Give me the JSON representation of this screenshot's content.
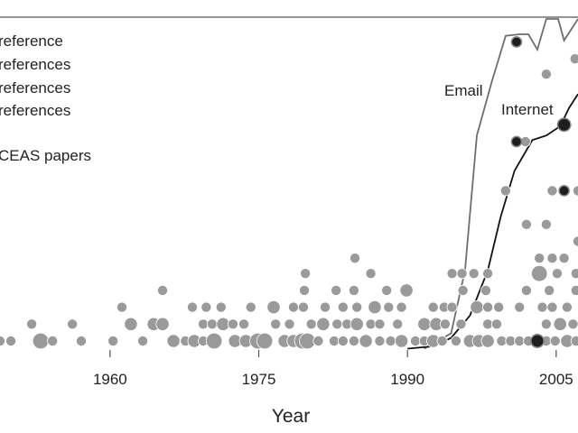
{
  "chart_data": {
    "type": "scatter",
    "x_label": "Year",
    "xlim": [
      1948.9,
      2007.2
    ],
    "xticks": [
      1960,
      1975,
      1990,
      2005
    ],
    "ylim": [
      0,
      22
    ],
    "size_legend": [
      "reference",
      "references",
      "references",
      "references"
    ],
    "series": [
      {
        "color": "#9a9a9a",
        "x": [
          1948.9,
          1950.0,
          1953.0,
          1954.2,
          1957.1,
          1960.3,
          1963.3,
          1966.4,
          1967.6,
          1968.5,
          1969.4,
          1970.5,
          1972.6,
          1973.7,
          1974.9,
          1975.6,
          1977.6,
          1978.5,
          1979.4,
          1979.9,
          1981.0,
          1982.6,
          1983.5,
          1984.6,
          1985.8,
          1987.2,
          1988.3,
          1989.4,
          1990.8,
          1991.7,
          1992.6,
          1993.5,
          1994.9,
          1996.3,
          1997.2,
          1998.1,
          1999.5,
          2000.4,
          2001.3,
          2002.2,
          2004.0,
          2004.9,
          2006.1,
          2007.0,
          1952.1,
          1956.2,
          1962.1,
          1964.4,
          1965.3,
          1969.4,
          1970.3,
          1971.4,
          1972.4,
          1973.5,
          1976.7,
          1978.1,
          1980.3,
          1981.5,
          1982.9,
          1983.9,
          1984.9,
          1986.3,
          1987.2,
          1989.0,
          1991.7,
          1992.9,
          1993.8,
          1995.4,
          1998.1,
          1999.0,
          2004.0,
          2005.4,
          2006.7,
          1961.2,
          1968.3,
          1969.7,
          1971.2,
          1974.2,
          1976.5,
          1978.5,
          1979.5,
          1981.7,
          1983.5,
          1984.9,
          1986.7,
          1988.1,
          1989.4,
          1992.6,
          1993.7,
          1994.5,
          1997.0,
          1998.1,
          1999.2,
          2001.3,
          2003.6,
          2004.6,
          2006.1,
          1965.3,
          1979.6,
          1982.8,
          1984.6,
          1987.9,
          1989.9,
          1995.6,
          1997.9,
          2002.0,
          2004.3,
          2007.0,
          1979.7,
          1986.3,
          1994.5,
          1995.5,
          1996.7,
          1998.1,
          2003.3,
          2005.1,
          2007.0,
          1984.7,
          2003.3,
          2004.6,
          2005.8,
          2007.2,
          2002.0,
          2004.0,
          1999.9,
          2004.6,
          2007.2,
          2001.9,
          2004.0,
          2006.9
        ],
        "y": [
          1,
          1,
          1,
          1,
          1,
          1,
          1,
          1,
          1,
          1,
          1,
          1,
          1,
          1,
          1,
          1,
          1,
          1,
          1,
          1,
          1,
          1,
          1,
          1,
          1,
          1,
          1,
          1,
          1,
          1,
          1,
          1,
          1,
          1,
          1,
          1,
          1,
          1,
          1,
          1,
          1,
          1,
          1,
          1,
          2.1,
          2.1,
          2.1,
          2.1,
          2.1,
          2.1,
          2.1,
          2.1,
          2.1,
          2.1,
          2.1,
          2.1,
          2.1,
          2.1,
          2.1,
          2.1,
          2.1,
          2.1,
          2.1,
          2.1,
          2.1,
          2.1,
          2.1,
          2.1,
          2.1,
          2.1,
          2.1,
          2.1,
          2.1,
          3.2,
          3.2,
          3.2,
          3.2,
          3.2,
          3.2,
          3.2,
          3.2,
          3.2,
          3.2,
          3.2,
          3.2,
          3.2,
          3.2,
          3.2,
          3.2,
          3.2,
          3.2,
          3.2,
          3.2,
          3.2,
          3.2,
          3.2,
          3.2,
          4.3,
          4.3,
          4.3,
          4.3,
          4.3,
          4.3,
          4.3,
          4.3,
          4.3,
          4.3,
          4.3,
          5.4,
          5.4,
          5.4,
          5.4,
          5.4,
          5.4,
          5.4,
          5.4,
          5.4,
          6.4,
          6.4,
          6.4,
          6.4,
          7.5,
          8.6,
          8.6,
          10.8,
          10.8,
          10.8,
          14,
          18.4,
          19.4
        ],
        "sizes": [
          1,
          1,
          3,
          1,
          1,
          1,
          1,
          2,
          1,
          2,
          1,
          3,
          2,
          2,
          3,
          3,
          2,
          2,
          3,
          3,
          1,
          1,
          1,
          1,
          2,
          1,
          1,
          2,
          1,
          1,
          2,
          1,
          1,
          2,
          2,
          2,
          1,
          1,
          1,
          1,
          1,
          1,
          2,
          1,
          1,
          1,
          2,
          2,
          2,
          1,
          1,
          2,
          1,
          1,
          1,
          1,
          1,
          2,
          1,
          1,
          2,
          1,
          1,
          1,
          2,
          2,
          1,
          1,
          1,
          1,
          1,
          2,
          1,
          1,
          1,
          1,
          1,
          1,
          2,
          1,
          1,
          1,
          1,
          1,
          2,
          1,
          1,
          1,
          1,
          1,
          2,
          1,
          1,
          1,
          1,
          1,
          1,
          1,
          1,
          1,
          1,
          1,
          2,
          1,
          1,
          1,
          1,
          1,
          1,
          1,
          1,
          1,
          1,
          1,
          3,
          1,
          1,
          1,
          1,
          1,
          1,
          1,
          1,
          1,
          1,
          1,
          1,
          1,
          1,
          1
        ]
      },
      {
        "name": "CEAS papers",
        "color": "#1e1e1e",
        "x": [
          2001.0,
          2001.0,
          2005.8,
          2003.1,
          2005.8
        ],
        "y": [
          20.5,
          14,
          10.8,
          1,
          15.1
        ],
        "sizes": [
          1,
          1,
          1,
          2,
          2
        ]
      }
    ],
    "lines": [
      {
        "name": "Email",
        "color": "#6e6e6e",
        "x": [
          1991.7,
          1994.4,
          1995.8,
          1997.0,
          1998.5,
          1999.9,
          2001.3,
          2002.2,
          2003.1,
          2004.0,
          2005.2,
          2005.8,
          2007.2
        ],
        "y": [
          0.5,
          1.5,
          5.6,
          14.4,
          17.9,
          20.9,
          21,
          21,
          20,
          22,
          22,
          20.6,
          22
        ]
      },
      {
        "name": "Internet",
        "color": "#111111",
        "x": [
          1990.0,
          1992.6,
          1994.4,
          1996.3,
          1998.1,
          1999.4,
          2000.8,
          2002.6,
          2004.0,
          2005.4,
          2006.3,
          2007.2
        ],
        "y": [
          0.5,
          0.65,
          1.2,
          2.65,
          5.6,
          9.1,
          12.1,
          14.1,
          14.4,
          15,
          16.2,
          17.1
        ]
      }
    ]
  }
}
